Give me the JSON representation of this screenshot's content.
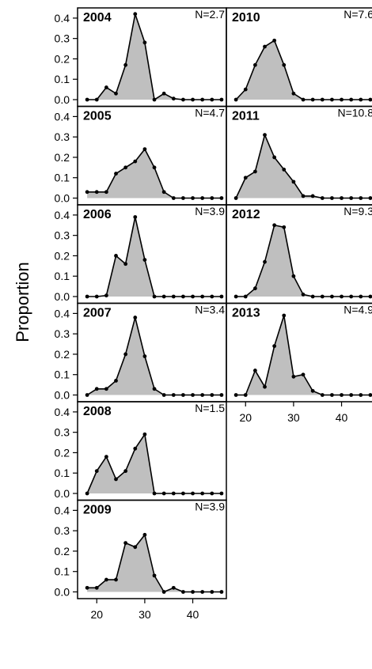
{
  "chart_data": {
    "type": "area",
    "ylabel": "Proportion",
    "xlabel": "",
    "layout": "two columns of small-multiple panels sharing axes",
    "x": [
      18,
      20,
      22,
      24,
      26,
      28,
      30,
      32,
      34,
      36,
      38,
      40,
      42,
      44,
      46
    ],
    "xlim": [
      16,
      47
    ],
    "ylim": [
      0,
      0.45
    ],
    "x_ticks": [
      20,
      30,
      40
    ],
    "y_ticks": [
      0.0,
      0.1,
      0.2,
      0.3,
      0.4
    ],
    "y_tick_labels": [
      "0.0",
      "0.1",
      "0.2",
      "0.3",
      "0.4"
    ],
    "fill_color": "#bfbfbf",
    "line_color": "#000000",
    "grid": false,
    "panels": [
      {
        "year": "2004",
        "n_label": "N=2.7",
        "values": [
          0,
          0,
          0.06,
          0.03,
          0.17,
          0.42,
          0.28,
          0.0,
          0.03,
          0.005,
          0,
          0,
          0,
          0,
          0
        ]
      },
      {
        "year": "2005",
        "n_label": "N=4.7",
        "values": [
          0.03,
          0.03,
          0.03,
          0.12,
          0.15,
          0.18,
          0.24,
          0.15,
          0.03,
          0,
          0,
          0,
          0,
          0,
          0
        ]
      },
      {
        "year": "2006",
        "n_label": "N=3.9",
        "values": [
          0,
          0,
          0.005,
          0.2,
          0.16,
          0.39,
          0.18,
          0,
          0,
          0,
          0,
          0,
          0,
          0,
          0
        ]
      },
      {
        "year": "2007",
        "n_label": "N=3.4",
        "values": [
          0,
          0.03,
          0.03,
          0.07,
          0.2,
          0.38,
          0.19,
          0.03,
          0,
          0,
          0,
          0,
          0,
          0,
          0
        ]
      },
      {
        "year": "2008",
        "n_label": "N=1.5",
        "values": [
          0,
          0.11,
          0.18,
          0.07,
          0.11,
          0.22,
          0.29,
          0,
          0,
          0,
          0,
          0,
          0,
          0,
          0
        ]
      },
      {
        "year": "2009",
        "n_label": "N=3.9",
        "values": [
          0.02,
          0.02,
          0.06,
          0.06,
          0.24,
          0.22,
          0.28,
          0.08,
          0,
          0.02,
          0,
          0,
          0,
          0,
          0
        ]
      },
      {
        "year": "2010",
        "n_label": "N=7.6",
        "values": [
          0,
          0.05,
          0.17,
          0.26,
          0.29,
          0.17,
          0.03,
          0,
          0,
          0,
          0,
          0,
          0,
          0,
          0
        ]
      },
      {
        "year": "2011",
        "n_label": "N=10.8",
        "values": [
          0,
          0.1,
          0.13,
          0.31,
          0.2,
          0.14,
          0.08,
          0.01,
          0.01,
          0,
          0,
          0,
          0,
          0,
          0
        ]
      },
      {
        "year": "2012",
        "n_label": "N=9.3",
        "values": [
          0,
          0,
          0.04,
          0.17,
          0.35,
          0.34,
          0.1,
          0.01,
          0,
          0,
          0,
          0,
          0,
          0,
          0
        ]
      },
      {
        "year": "2013",
        "n_label": "N=4.9",
        "values": [
          0,
          0,
          0.12,
          0.04,
          0.24,
          0.39,
          0.09,
          0.1,
          0.02,
          0,
          0,
          0,
          0,
          0,
          0
        ]
      }
    ]
  }
}
